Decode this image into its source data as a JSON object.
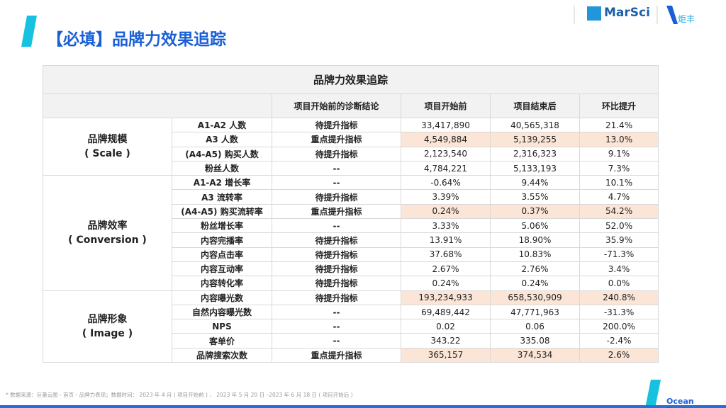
{
  "header": {
    "title": "【必填】品牌力效果追踪",
    "logo_marsci": "MarSci",
    "logo_partner": "炬丰"
  },
  "table": {
    "title": "品牌力效果追踪",
    "columns": [
      "项目开始前的诊断结论",
      "项目开始前",
      "项目结束后",
      "环比提升"
    ],
    "groups": [
      {
        "name": [
          "品牌规模",
          "( Scale )"
        ],
        "rows": [
          {
            "metric": "A1-A2 人数",
            "diagnosis": "待提升指标",
            "before": "33,417,890",
            "after": "40,565,318",
            "change": "21.4%"
          },
          {
            "metric": "A3 人数",
            "diagnosis": "重点提升指标",
            "before": "4,549,884",
            "after": "5,139,255",
            "change": "13.0%",
            "highlight": true
          },
          {
            "metric": "(A4-A5) 购买人数",
            "diagnosis": "待提升指标",
            "before": "2,123,540",
            "after": "2,316,323",
            "change": "9.1%"
          },
          {
            "metric": "粉丝人数",
            "diagnosis": "--",
            "before": "4,784,221",
            "after": "5,133,193",
            "change": "7.3%"
          }
        ]
      },
      {
        "name": [
          "品牌效率",
          "( Conversion )"
        ],
        "rows": [
          {
            "metric": "A1-A2 增长率",
            "diagnosis": "--",
            "before": "-0.64%",
            "after": "9.44%",
            "change": "10.1%"
          },
          {
            "metric": "A3 流转率",
            "diagnosis": "待提升指标",
            "before": "3.39%",
            "after": "3.55%",
            "change": "4.7%"
          },
          {
            "metric": "(A4-A5) 购买流转率",
            "diagnosis": "重点提升指标",
            "before": "0.24%",
            "after": "0.37%",
            "change": "54.2%",
            "highlight": true
          },
          {
            "metric": "粉丝增长率",
            "diagnosis": "--",
            "before": "3.33%",
            "after": "5.06%",
            "change": "52.0%"
          },
          {
            "metric": "内容完播率",
            "diagnosis": "待提升指标",
            "before": "13.91%",
            "after": "18.90%",
            "change": "35.9%"
          },
          {
            "metric": "内容点击率",
            "diagnosis": "待提升指标",
            "before": "37.68%",
            "after": "10.83%",
            "change": "-71.3%"
          },
          {
            "metric": "内容互动率",
            "diagnosis": "待提升指标",
            "before": "2.67%",
            "after": "2.76%",
            "change": "3.4%"
          },
          {
            "metric": "内容转化率",
            "diagnosis": "待提升指标",
            "before": "0.24%",
            "after": "0.24%",
            "change": "0.0%"
          }
        ]
      },
      {
        "name": [
          "品牌形象",
          "( Image )"
        ],
        "rows": [
          {
            "metric": "内容曝光数",
            "diagnosis": "待提升指标",
            "before": "193,234,933",
            "after": "658,530,909",
            "change": "240.8%",
            "highlight": true
          },
          {
            "metric": "自然内容曝光数",
            "diagnosis": "--",
            "before": "69,489,442",
            "after": "47,771,963",
            "change": "-31.3%"
          },
          {
            "metric": "NPS",
            "diagnosis": "--",
            "before": "0.02",
            "after": "0.06",
            "change": "200.0%"
          },
          {
            "metric": "客单价",
            "diagnosis": "--",
            "before": "343.22",
            "after": "335.08",
            "change": "-2.4%"
          },
          {
            "metric": "品牌搜索次数",
            "diagnosis": "重点提升指标",
            "before": "365,157",
            "after": "374,534",
            "change": "2.6%",
            "highlight": true
          }
        ]
      }
    ]
  },
  "footer": {
    "note": "* 数据来源：巨量云图 - 首页 - 品牌力表现；数据时间： 2023 年 4 月 ( 项目开始前 ) 、 2023 年 5 月 20 日 –2023 年 6 月 18 日 ( 项目开始后 )",
    "brand": "Ocean Engine"
  }
}
